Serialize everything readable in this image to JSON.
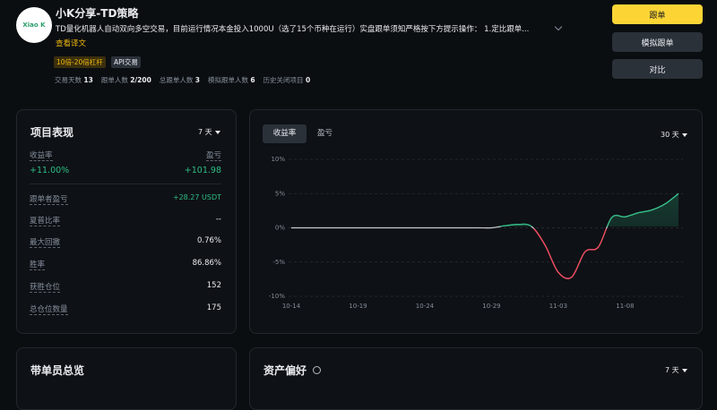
{
  "header": {
    "avatar_text": "Xiao K",
    "title": "小K分享-TD策略",
    "description": "TD量化机器人自动双向多空交易，目前运行情况本金投入1000U（选了15个币种在运行）实盘跟单须知严格按下方提示操作： 1.定比跟单...",
    "translate_link": "查看译文",
    "tags": [
      "10倍-20倍杠杆",
      "API交易"
    ],
    "stats": [
      {
        "label": "交易天数",
        "value": 13
      },
      {
        "label": "跟单人数",
        "value": "2/200"
      },
      {
        "label": "总跟单人数",
        "value": 3
      },
      {
        "label": "模拟跟单人数",
        "value": 6
      },
      {
        "label": "历史关闭项目",
        "value": 0
      }
    ]
  },
  "buttons": [
    "跟单",
    "模拟跟单",
    "对比"
  ],
  "performance": {
    "title": "项目表现",
    "period": "7 天",
    "headline": [
      {
        "label": "收益率",
        "value": "+11.00%"
      },
      {
        "label": "盈亏",
        "value": "+101.98"
      }
    ],
    "rows": [
      {
        "label": "跟单者盈亏",
        "value": "+28.27 USDT"
      },
      {
        "label": "夏普比率",
        "value": "--"
      },
      {
        "label": "最大回撤",
        "value": "0.76%"
      },
      {
        "label": "胜率",
        "value": "86.86%"
      },
      {
        "label": "获胜仓位",
        "value": "152"
      },
      {
        "label": "总仓位数量",
        "value": "175"
      }
    ]
  },
  "chart_panel": {
    "tabs": [
      "收益率",
      "盈亏"
    ],
    "period": "30 天"
  },
  "chart_data": {
    "type": "line",
    "categories": [
      "10-14",
      null,
      null,
      null,
      null,
      "10-19",
      null,
      null,
      null,
      null,
      "10-24",
      null,
      null,
      null,
      null,
      "10-29",
      null,
      null,
      null,
      null,
      "11-03",
      null,
      null,
      null,
      null,
      "11-08",
      null,
      null,
      null,
      null
    ],
    "values": [
      0,
      0,
      0,
      0,
      0,
      0,
      0,
      0,
      0,
      0,
      0,
      0,
      0,
      0,
      0,
      0,
      0.3,
      0.5,
      0.2,
      -2.5,
      -6.5,
      -7.2,
      -3.5,
      -2.8,
      1.5,
      1.6,
      2.2,
      2.6,
      3.5,
      5.0
    ],
    "positive_color": "#2ebd85",
    "negative_color": "#f6465d",
    "neutral_color": "#c8ccd0",
    "ylim": [
      -10,
      10
    ],
    "yticks": [
      {
        "value": 10,
        "label": "10%"
      },
      {
        "value": 5,
        "label": "5%"
      },
      {
        "value": 0,
        "label": "0%"
      },
      {
        "value": -5,
        "label": "-5%"
      },
      {
        "value": -10,
        "label": "-10%"
      }
    ],
    "grid": true
  },
  "lead_overview": {
    "title": "带单员总览"
  },
  "asset_preference": {
    "title": "资产偏好",
    "period": "7 天"
  }
}
